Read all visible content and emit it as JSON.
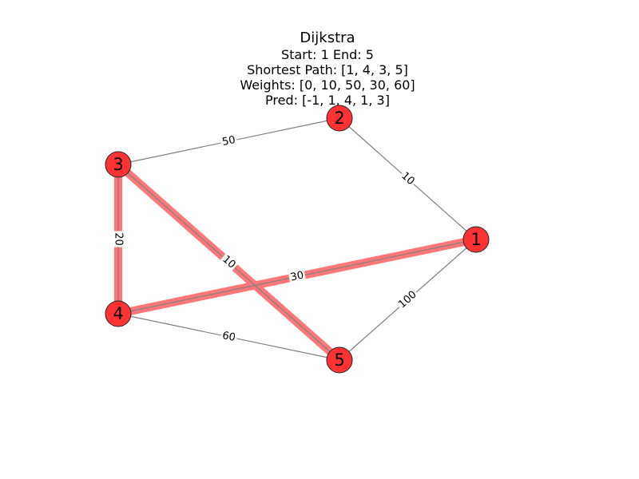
{
  "title": "Dijkstra",
  "subtitle_lines": [
    "Start: 1 End: 5",
    "Shortest Path: [1, 4, 3, 5]",
    "Weights: [0, 10, 50, 30, 60]",
    "Pred: [-1, 1, 4, 1, 3]"
  ],
  "colors": {
    "node_fill": "#ff3333",
    "node_stroke": "#222222",
    "edge": "#808080",
    "highlight": "#ff7777"
  },
  "nodes": [
    {
      "id": "1",
      "label": "1"
    },
    {
      "id": "2",
      "label": "2"
    },
    {
      "id": "3",
      "label": "3"
    },
    {
      "id": "4",
      "label": "4"
    },
    {
      "id": "5",
      "label": "5"
    }
  ],
  "edges": [
    {
      "from": "2",
      "to": "1",
      "weight": "10",
      "highlighted": false
    },
    {
      "from": "3",
      "to": "2",
      "weight": "50",
      "highlighted": false
    },
    {
      "from": "1",
      "to": "5",
      "weight": "100",
      "highlighted": false
    },
    {
      "from": "4",
      "to": "5",
      "weight": "60",
      "highlighted": false
    },
    {
      "from": "3",
      "to": "4",
      "weight": "20",
      "highlighted": true
    },
    {
      "from": "4",
      "to": "1",
      "weight": "30",
      "highlighted": true
    },
    {
      "from": "3",
      "to": "5",
      "weight": "10",
      "highlighted": true
    }
  ]
}
